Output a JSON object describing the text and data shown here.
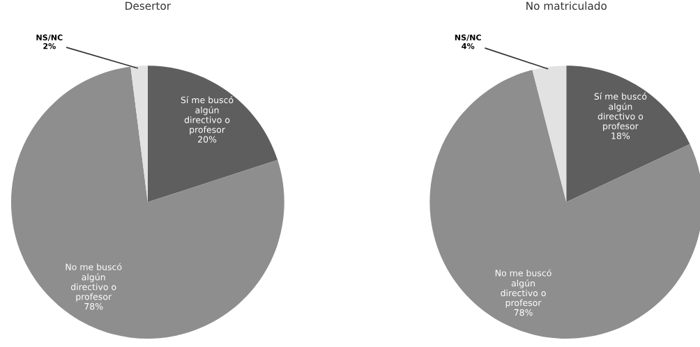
{
  "chart_data": [
    {
      "type": "pie",
      "title": "Desertor",
      "categories": [
        "Sí me buscó\nalgún\ndirectivo o\nprofesor",
        "No me buscó\nalgún\ndirectivo o\nprofesor",
        "NS/NC"
      ],
      "values": [
        20,
        78,
        2
      ],
      "value_labels": [
        "20%",
        "78%",
        "2%"
      ],
      "colors": [
        "#5e5e5e",
        "#8e8e8e",
        "#e2e2e2"
      ]
    },
    {
      "type": "pie",
      "title": "No matriculado",
      "categories": [
        "Sí me buscó\nalgún\ndirectivo o\nprofesor",
        "No me buscó\nalgún\ndirectivo o\nprofesor",
        "NS/NC"
      ],
      "values": [
        18,
        78,
        4
      ],
      "value_labels": [
        "18%",
        "78%",
        "4%"
      ],
      "colors": [
        "#5e5e5e",
        "#8e8e8e",
        "#e2e2e2"
      ]
    }
  ]
}
